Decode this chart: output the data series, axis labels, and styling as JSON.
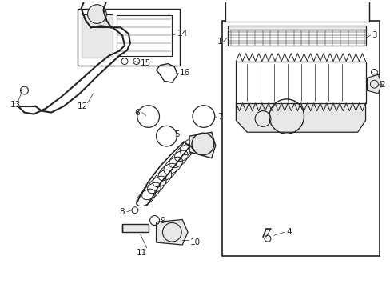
{
  "bg_color": "#ffffff",
  "fig_width": 4.89,
  "fig_height": 3.6,
  "dpi": 100,
  "line_color": "#222222",
  "label_fontsize": 7.5,
  "gray_fill": "#cccccc",
  "light_gray": "#e8e8e8"
}
